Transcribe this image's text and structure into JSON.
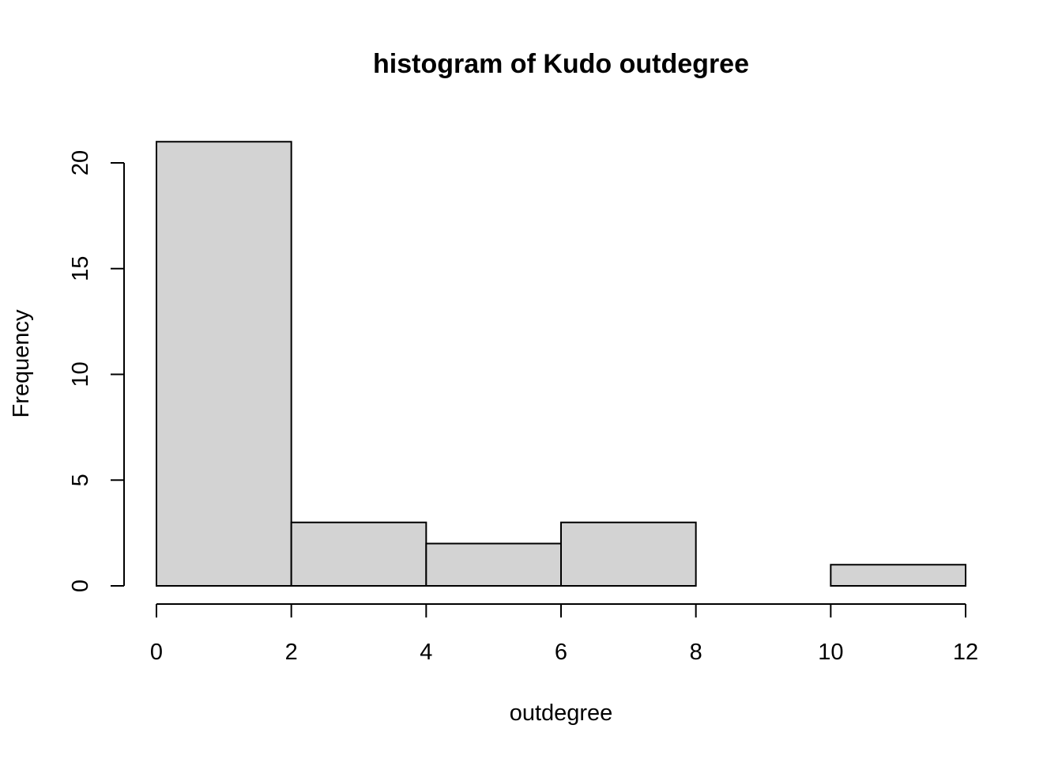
{
  "chart_data": {
    "type": "bar",
    "title": "histogram of Kudo outdegree",
    "xlabel": "outdegree",
    "ylabel": "Frequency",
    "bins": [
      {
        "from": 0,
        "to": 2,
        "count": 21
      },
      {
        "from": 2,
        "to": 4,
        "count": 3
      },
      {
        "from": 4,
        "to": 6,
        "count": 2
      },
      {
        "from": 6,
        "to": 8,
        "count": 3
      },
      {
        "from": 8,
        "to": 10,
        "count": 0
      },
      {
        "from": 10,
        "to": 12,
        "count": 1
      }
    ],
    "x_ticks": [
      0,
      2,
      4,
      6,
      8,
      10,
      12
    ],
    "y_ticks": [
      0,
      5,
      10,
      15,
      20
    ],
    "xlim": [
      0,
      12
    ],
    "ylim": [
      0,
      21
    ],
    "bar_color": "#d3d3d3",
    "grid": false,
    "legend": "none"
  }
}
